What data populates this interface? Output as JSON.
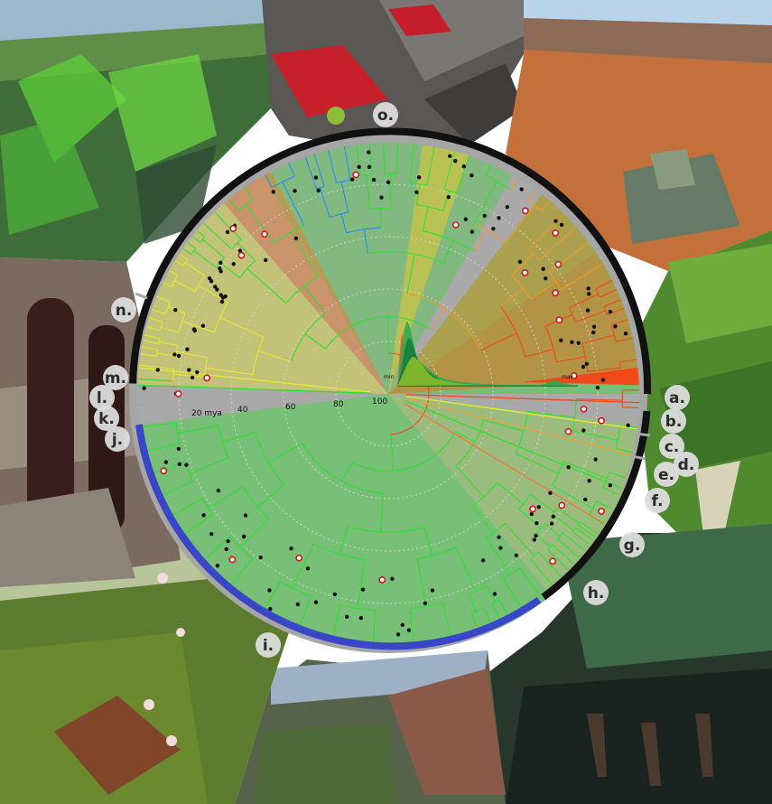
{
  "figure": {
    "age_axis": {
      "unit_label": "20 mya",
      "ticks": [
        "40",
        "60",
        "80",
        "100"
      ],
      "tick_values": [
        20,
        40,
        60,
        80,
        100
      ]
    },
    "density_inset": {
      "min_label": "min",
      "max_label": "max",
      "curve_colors": [
        "#e8613a",
        "#2aa84a",
        "#0e7a3a",
        "#8fbf2a"
      ]
    },
    "panels": [
      "a.",
      "b.",
      "c.",
      "d.",
      "e.",
      "f.",
      "g.",
      "h.",
      "i.",
      "j.",
      "k.",
      "l.",
      "m.",
      "n.",
      "o."
    ],
    "rate_colors": {
      "low": "#2fe02f",
      "mid": "#e8e832",
      "high": "#f04a1a",
      "very_low": "#2a8cf0"
    },
    "clade_bar_colors": {
      "black": "#111111",
      "blue": "#3a46c8",
      "outer_ring": "#a8a8a8"
    },
    "photo_icons": [
      "aquatic-plant-photo-icon",
      "red-succulent-photo-icon",
      "desert-shrub-photo-icon",
      "leafy-shrub-photo-icon",
      "swamp-cypress-photo-icon",
      "rocky-hillside-photo-icon",
      "saxifrage-flower-photo-icon",
      "dark-inflorescence-photo-icon"
    ]
  }
}
